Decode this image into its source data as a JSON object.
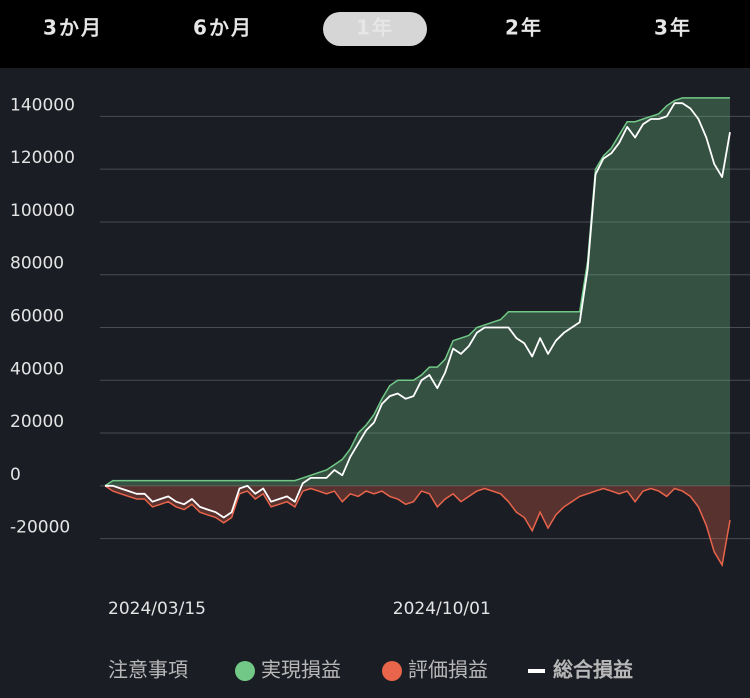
{
  "tabs": {
    "items": [
      "3か月",
      "6か月",
      "1年",
      "2年",
      "3年"
    ],
    "selected": 2
  },
  "notice": "注意事項",
  "chart_data": {
    "type": "area",
    "ylim": [
      -30000,
      150000
    ],
    "yticks": [
      -20000,
      0,
      20000,
      40000,
      60000,
      80000,
      100000,
      120000,
      140000
    ],
    "grid": true,
    "categories": [
      "2024/03/15",
      null,
      null,
      null,
      null,
      null,
      null,
      null,
      null,
      null,
      null,
      null,
      null,
      null,
      null,
      null,
      null,
      null,
      null,
      null,
      null,
      null,
      null,
      null,
      null,
      null,
      null,
      null,
      null,
      null,
      null,
      null,
      null,
      null,
      null,
      null,
      "2024/10/01",
      null,
      null,
      null,
      null,
      null,
      null,
      null,
      null,
      null,
      null,
      null,
      null,
      null,
      null,
      null,
      null,
      null,
      null,
      null,
      null,
      null,
      null,
      null,
      null,
      null,
      null,
      null,
      null,
      null,
      null,
      null,
      null,
      null,
      null,
      null,
      null,
      null,
      null,
      null,
      null,
      null,
      null,
      null
    ],
    "series": [
      {
        "name": "実現損益",
        "color": "#72c987",
        "style": "area",
        "values": [
          0,
          2000,
          2000,
          2000,
          2000,
          2000,
          2000,
          2000,
          2000,
          2000,
          2000,
          2000,
          2000,
          2000,
          2000,
          2000,
          2000,
          2000,
          2000,
          2000,
          2000,
          2000,
          2000,
          2000,
          2000,
          3000,
          4000,
          5000,
          6000,
          8000,
          10000,
          14000,
          20000,
          23000,
          27000,
          33000,
          38000,
          40000,
          40000,
          40000,
          42000,
          45000,
          45000,
          48000,
          55000,
          56000,
          57000,
          60000,
          61000,
          62000,
          63000,
          66000,
          66000,
          66000,
          66000,
          66000,
          66000,
          66000,
          66000,
          66000,
          66000,
          85000,
          120000,
          125000,
          128000,
          133000,
          138000,
          138000,
          139000,
          140000,
          141000,
          144000,
          146000,
          147000,
          147000,
          147000,
          147000,
          147000,
          147000,
          147000
        ]
      },
      {
        "name": "評価損益",
        "color": "#e8644a",
        "style": "area",
        "values": [
          0,
          -2000,
          -3000,
          -4000,
          -5000,
          -5000,
          -8000,
          -7000,
          -6000,
          -8000,
          -9000,
          -7000,
          -10000,
          -11000,
          -12000,
          -14000,
          -12000,
          -3000,
          -2000,
          -5000,
          -3000,
          -8000,
          -7000,
          -6000,
          -8000,
          -2000,
          -1000,
          -2000,
          -3000,
          -2000,
          -6000,
          -3000,
          -4000,
          -2000,
          -3000,
          -2000,
          -4000,
          -5000,
          -7000,
          -6000,
          -2000,
          -3000,
          -8000,
          -5000,
          -3000,
          -6000,
          -4000,
          -2000,
          -1000,
          -2000,
          -3000,
          -6000,
          -10000,
          -12000,
          -17000,
          -10000,
          -16000,
          -11000,
          -8000,
          -6000,
          -4000,
          -3000,
          -2000,
          -1000,
          -2000,
          -3000,
          -2000,
          -6000,
          -2000,
          -1000,
          -2000,
          -4000,
          -1000,
          -2000,
          -4000,
          -8000,
          -15000,
          -25000,
          -30000,
          -13000
        ]
      },
      {
        "name": "総合損益",
        "color": "#ffffff",
        "style": "line",
        "values": [
          0,
          0,
          -1000,
          -2000,
          -3000,
          -3000,
          -6000,
          -5000,
          -4000,
          -6000,
          -7000,
          -5000,
          -8000,
          -9000,
          -10000,
          -12000,
          -10000,
          -1000,
          0,
          -3000,
          -1000,
          -6000,
          -5000,
          -4000,
          -6000,
          1000,
          3000,
          3000,
          3000,
          6000,
          4000,
          11000,
          16000,
          21000,
          24000,
          31000,
          34000,
          35000,
          33000,
          34000,
          40000,
          42000,
          37000,
          43000,
          52000,
          50000,
          53000,
          58000,
          60000,
          60000,
          60000,
          60000,
          56000,
          54000,
          49000,
          56000,
          50000,
          55000,
          58000,
          60000,
          62000,
          82000,
          118000,
          124000,
          126000,
          130000,
          136000,
          132000,
          137000,
          139000,
          139000,
          140000,
          145000,
          145000,
          143000,
          139000,
          132000,
          122000,
          117000,
          134000
        ]
      }
    ]
  }
}
